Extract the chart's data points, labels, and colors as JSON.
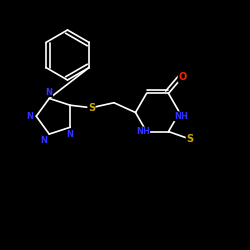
{
  "background_color": "#000000",
  "bond_color": "#ffffff",
  "atom_colors": {
    "N": "#3333ff",
    "O": "#ff2200",
    "S": "#ccaa00",
    "C": "#ffffff",
    "H": "#ffffff"
  },
  "figsize": [
    2.5,
    2.5
  ],
  "dpi": 100,
  "xlim": [
    0,
    10
  ],
  "ylim": [
    0,
    10
  ]
}
